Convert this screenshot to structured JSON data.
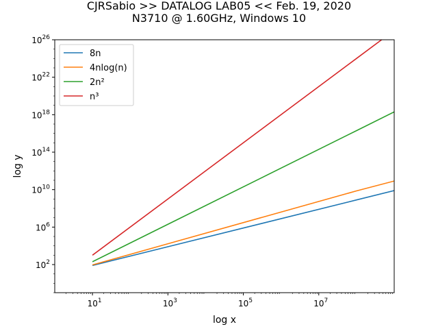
{
  "chart_data": {
    "type": "line",
    "title": "CJRSabio >> DATALOG LAB05 << Feb. 19, 2020",
    "subtitle": "N3710 @ 1.60GHz, Windows 10",
    "xlabel": "log x",
    "ylabel": "log y",
    "xscale": "log",
    "yscale": "log",
    "xlim": [
      1,
      1000000000
    ],
    "ylim": [
      0.1,
      100000000000000000000000000
    ],
    "xticks": [
      {
        "value": 10,
        "base": "10",
        "exp": "1"
      },
      {
        "value": 1000,
        "base": "10",
        "exp": "3"
      },
      {
        "value": 100000,
        "base": "10",
        "exp": "5"
      },
      {
        "value": 10000000,
        "base": "10",
        "exp": "7"
      }
    ],
    "yticks": [
      {
        "value": 100,
        "base": "10",
        "exp": "2"
      },
      {
        "value": 1000000,
        "base": "10",
        "exp": "6"
      },
      {
        "value": 10000000000,
        "base": "10",
        "exp": "10"
      },
      {
        "value": 100000000000000,
        "base": "10",
        "exp": "14"
      },
      {
        "value": 1000000000000000000,
        "base": "10",
        "exp": "18"
      },
      {
        "value": 10000000000000000000000,
        "base": "10",
        "exp": "22"
      },
      {
        "value": 100000000000000000000000000,
        "base": "10",
        "exp": "26"
      }
    ],
    "legend_position": "top-left",
    "grid": false,
    "series": [
      {
        "name": "8n",
        "color": "#1f77b4",
        "x": [
          10,
          100000000,
          1000000000
        ],
        "y": [
          80,
          800000000,
          8000000000
        ]
      },
      {
        "name": "4nlog(n)",
        "color": "#ff7f0e",
        "x": [
          10,
          100000000,
          1000000000
        ],
        "y": [
          92.1,
          7370000000,
          82900000000
        ]
      },
      {
        "name": "2n²",
        "color": "#2ca02c",
        "x": [
          10,
          100000000,
          1000000000
        ],
        "y": [
          200,
          20000000000000000,
          2000000000000000000
        ]
      },
      {
        "name": "n³",
        "color": "#d62728",
        "x": [
          10,
          100000000,
          1000000000
        ],
        "y": [
          1000,
          1000000000000000000000000,
          1000000000000000000000000000
        ]
      }
    ]
  }
}
